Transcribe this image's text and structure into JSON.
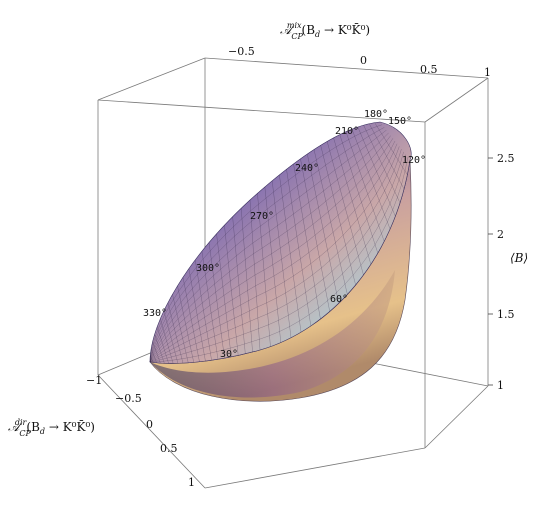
{
  "chart_data": {
    "type": "surface3d",
    "title": "",
    "xlabel": "A_CP^dir(B_d → K^0 K̄^0)",
    "ylabel": "A_CP^mix(B_d → K^0 K̄^0)",
    "zlabel": "⟨B⟩",
    "xlabel_parts": {
      "main": "𝒜",
      "sup": "dir",
      "sub": "CP",
      "rest": "(B",
      "sub2": "d",
      "tail": " → K⁰K̄⁰)"
    },
    "ylabel_parts": {
      "main": "𝒜",
      "sup": "mix",
      "sub": "CP",
      "rest": "(B",
      "sub2": "d",
      "tail": " → K⁰K̄⁰)"
    },
    "zlabel_text": "⟨B⟩",
    "x_ticks": [
      "−1",
      "−0.5",
      "0",
      "0.5",
      "1"
    ],
    "y_ticks": [
      "−0.5",
      "0",
      "0.5",
      "1"
    ],
    "z_ticks": [
      "1",
      "1.5",
      "2",
      "2.5"
    ],
    "xlim": [
      -1,
      1
    ],
    "ylim": [
      -1,
      1
    ],
    "zlim": [
      0.85,
      2.8
    ],
    "grid": false,
    "phase_labels": [
      "180°",
      "150°",
      "210°",
      "120°",
      "240°",
      "270°",
      "300°",
      "330°",
      "30°",
      "60°"
    ],
    "colors": {
      "top_rim": "#4a3f8f",
      "mid": "#c8a3a0",
      "bottom_front": "#e8c38a",
      "left_tip": "#cfe8c8",
      "cyan_inner": "#8fd4e0"
    }
  }
}
